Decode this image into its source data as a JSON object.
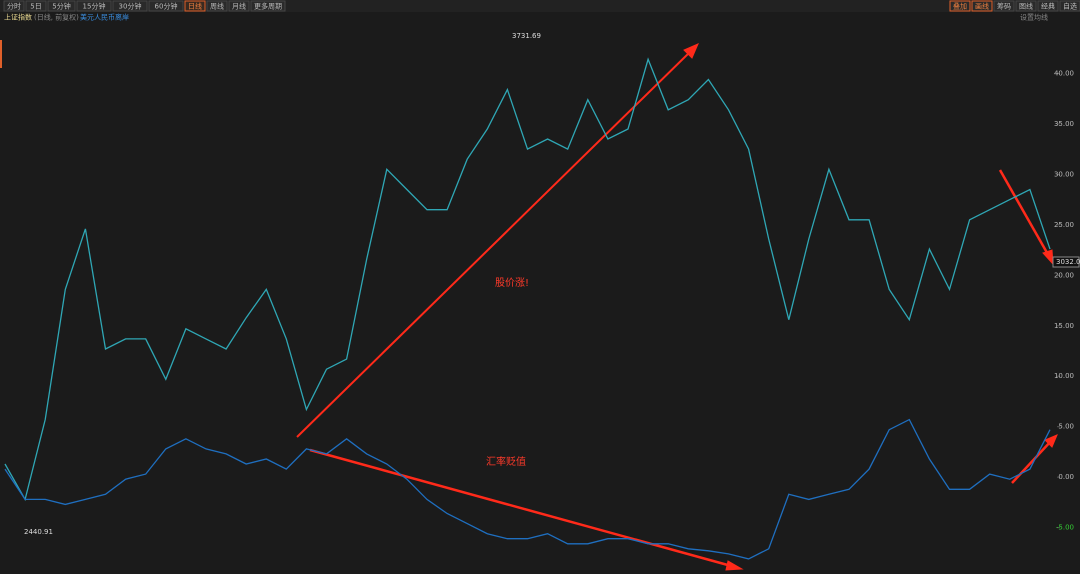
{
  "toolbar": {
    "periods": [
      "分时",
      "5日",
      "5分钟",
      "15分钟",
      "30分钟",
      "60分钟",
      "日线",
      "周线",
      "月线",
      "更多周期"
    ],
    "active": "日线",
    "tools": [
      "叠加",
      "画线",
      "筹码",
      "图线",
      "经典",
      "自选"
    ]
  },
  "legend_bar": {
    "main": "上证指数",
    "mode": "(日线, 前复权)",
    "overlay": "美元人民币离岸",
    "settings": "设置均线"
  },
  "chart_data": {
    "type": "line",
    "categories": [
      null,
      null,
      null,
      null,
      null,
      null,
      null,
      null,
      null,
      null,
      null,
      null,
      null,
      null,
      null,
      null,
      null,
      null,
      null,
      null,
      null,
      null,
      null,
      null,
      null,
      null,
      null,
      null,
      null,
      null,
      null,
      null,
      null,
      null,
      null,
      null,
      null,
      null,
      null,
      null,
      null,
      null,
      null,
      null,
      null,
      null,
      null,
      null,
      null,
      null,
      null,
      null,
      null
    ],
    "series": [
      {
        "name": "上证指数",
        "color": "#2fa7b5",
        "values": [
          1.3,
          -2.2,
          5.7,
          18.6,
          24.6,
          12.7,
          13.7,
          13.7,
          9.7,
          14.7,
          13.7,
          12.7,
          15.8,
          18.6,
          13.7,
          6.7,
          10.7,
          11.7,
          21.6,
          30.5,
          28.5,
          26.5,
          26.5,
          31.5,
          34.5,
          38.4,
          32.5,
          33.5,
          32.5,
          37.4,
          33.5,
          34.5,
          41.4,
          36.4,
          37.4,
          39.4,
          36.4,
          32.5,
          23.6,
          15.6,
          23.6,
          30.5,
          25.5,
          25.5,
          18.6,
          15.6,
          22.6,
          18.6,
          25.5,
          26.5,
          27.5,
          28.5,
          22.6
        ]
      },
      {
        "name": "美元人民币离岸",
        "color": "#1f6fc0",
        "values": [
          0.8,
          -2.2,
          -2.2,
          -2.7,
          -2.2,
          -1.7,
          -0.2,
          0.3,
          2.8,
          3.8,
          2.8,
          2.3,
          1.3,
          1.8,
          0.8,
          2.8,
          2.3,
          3.8,
          2.3,
          1.3,
          -0.2,
          -2.2,
          -3.6,
          -4.6,
          -5.6,
          -6.1,
          -6.1,
          -5.6,
          -6.6,
          -6.6,
          -6.1,
          -6.1,
          -6.6,
          -6.6,
          -7.1,
          -7.3,
          -7.6,
          -8.1,
          -7.1,
          -1.7,
          -2.2,
          -1.7,
          -1.2,
          0.8,
          4.7,
          5.7,
          1.8,
          -1.2,
          -1.2,
          0.3,
          -0.2,
          0.8,
          4.7
        ]
      }
    ],
    "ylim": [
      -9.2,
      44.8
    ],
    "yticks": [
      {
        "value": 40,
        "label": "40.00"
      },
      {
        "value": 35,
        "label": "35.00"
      },
      {
        "value": 30,
        "label": "30.00"
      },
      {
        "value": 25,
        "label": "25.00"
      },
      {
        "value": 20,
        "label": "20.00"
      },
      {
        "value": 15,
        "label": "15.00"
      },
      {
        "value": 10,
        "label": "10.00"
      },
      {
        "value": 5,
        "label": "5.00"
      },
      {
        "value": 0,
        "label": "0.00"
      },
      {
        "value": -5,
        "label": "-5.00"
      }
    ],
    "annotations": [
      "3731.69",
      "2440.91",
      "3032.00",
      "股价涨!",
      "汇率贬值"
    ]
  }
}
